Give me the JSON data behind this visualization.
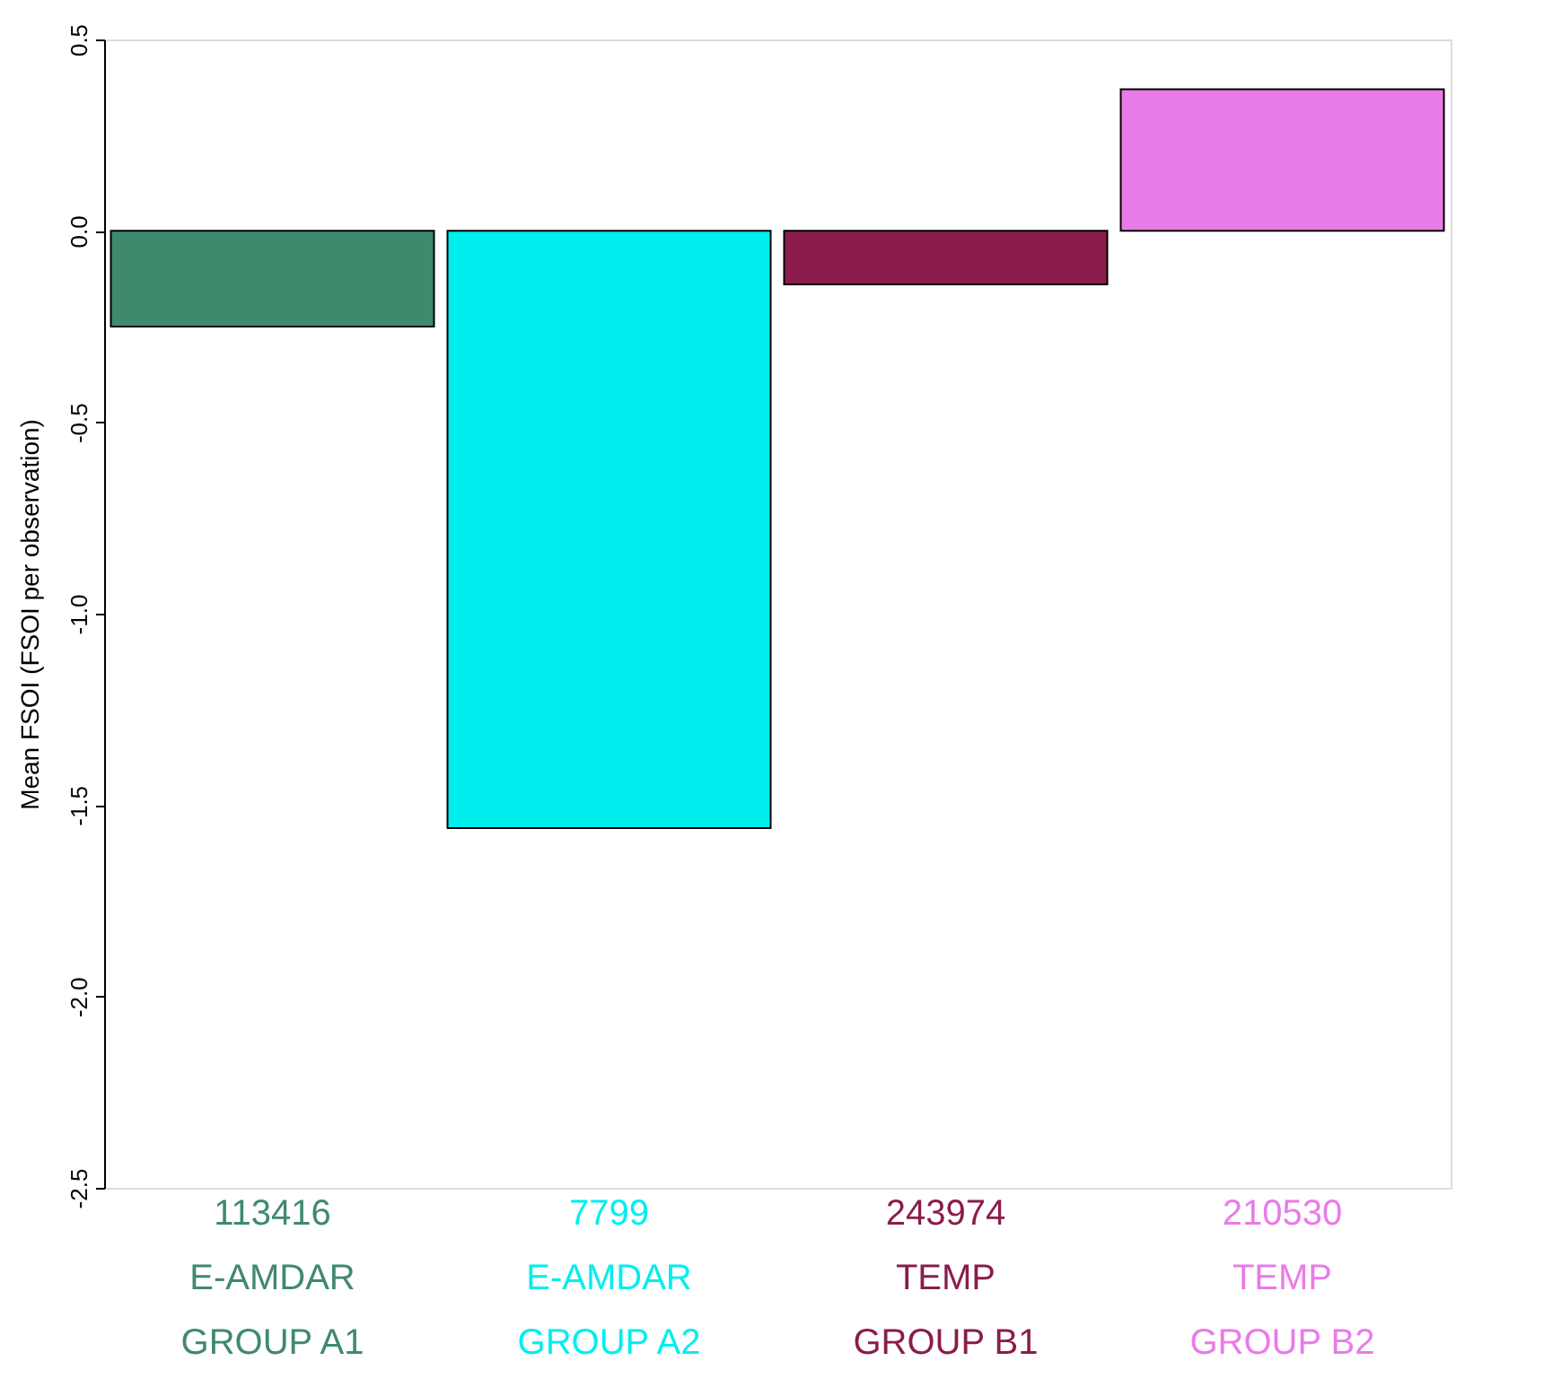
{
  "chart_data": {
    "type": "bar",
    "ylabel": "Mean FSOI (FSOI per observation)",
    "categories": [
      "GROUP A1",
      "GROUP A2",
      "GROUP B1",
      "GROUP B2"
    ],
    "values": [
      -0.25,
      -1.56,
      -0.14,
      0.37
    ],
    "colors": [
      "#3f8a6c",
      "#00eeee",
      "#8b1c4c",
      "#e97be9"
    ],
    "ylim": [
      -2.5,
      0.5
    ],
    "yticks": [
      0.5,
      {
        "value": 0,
        "label": "0.0"
      },
      -0.5,
      {
        "value": -1,
        "label": "-1.0"
      },
      -1.5,
      {
        "value": -2,
        "label": "-2.0"
      },
      -2.5
    ],
    "grid": false,
    "annotations": [
      "113416",
      "E-AMDAR",
      "7799",
      "E-AMDAR",
      "243974",
      "TEMP",
      "210530",
      "TEMP"
    ]
  }
}
